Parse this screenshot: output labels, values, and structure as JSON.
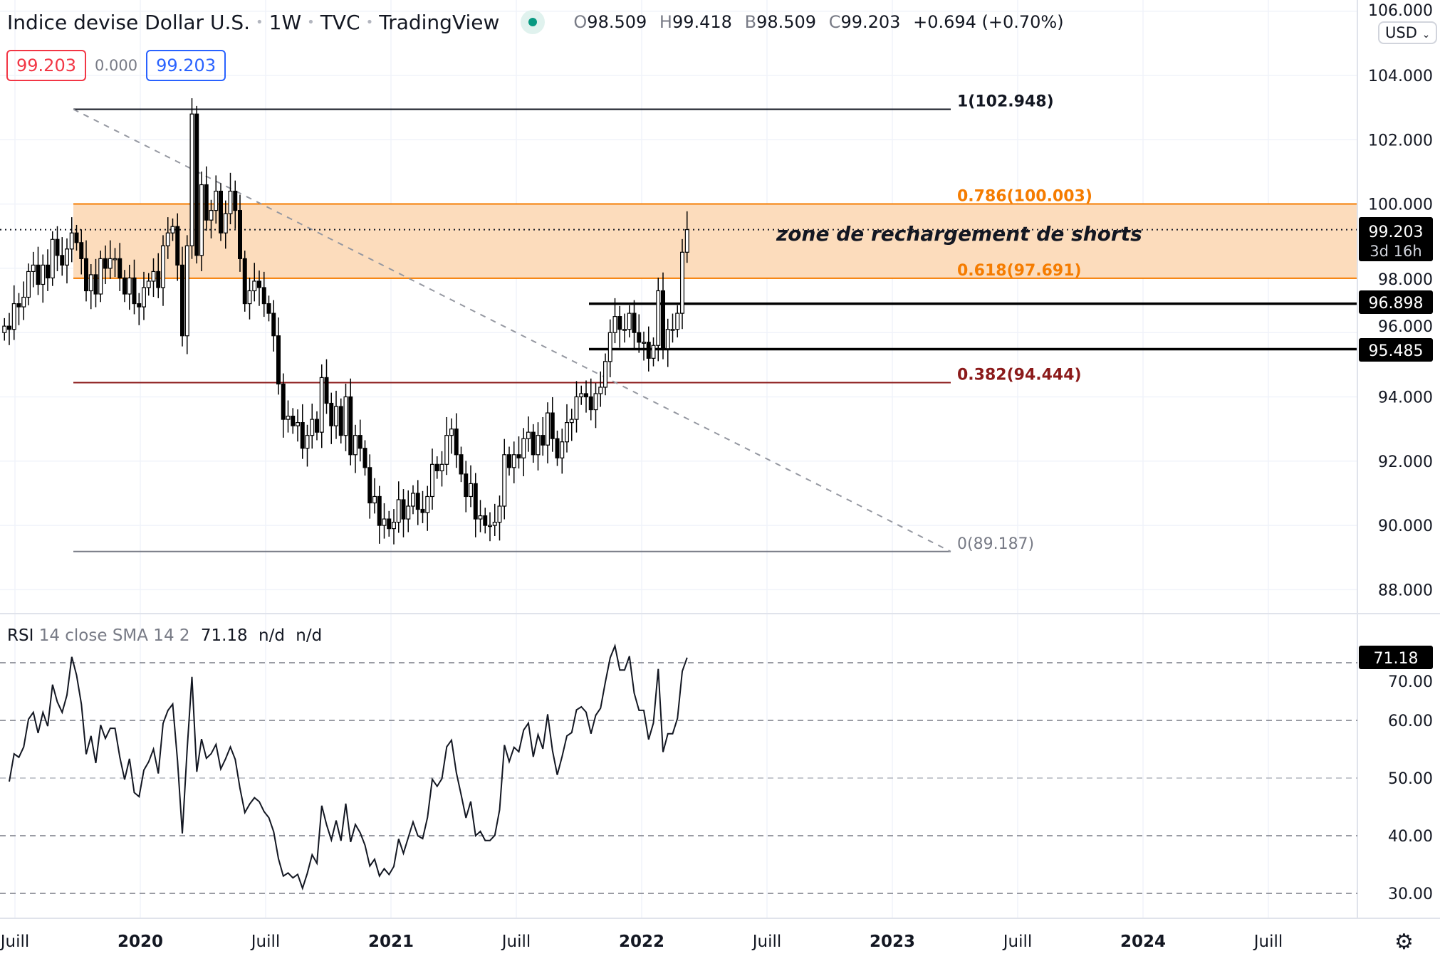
{
  "header": {
    "title": "Indice devise Dollar U.S.",
    "interval": "1W",
    "exchange": "TVC",
    "source": "TradingView",
    "ohlc": {
      "o_label": "O",
      "o": "98.509",
      "h_label": "H",
      "h": "99.418",
      "l_label": "B",
      "l": "98.509",
      "c_label": "C",
      "c": "99.203",
      "change": "+0.694 (+0.70%)"
    },
    "bid": "99.203",
    "spread": "0.000",
    "ask": "99.203"
  },
  "currency_button": "USD",
  "colors": {
    "fib_top": "#131722",
    "fib_786": "#f57c00",
    "fib_618": "#f57c00",
    "fib_382": "#8b1a1a",
    "fib_0": "#787b86",
    "zone": "#fcdcbc",
    "rsi": "#131722"
  },
  "annotation": "zone de rechargement de shorts",
  "price_labels": {
    "last": "99.203",
    "countdown": "3d 16h",
    "line1": "96.898",
    "line2": "95.485"
  },
  "rsi": {
    "title": "RSI",
    "params": "14 close SMA 14 2",
    "value": "71.18",
    "nd1": "n/d",
    "nd2": "n/d"
  },
  "chart_data": {
    "type": "candlestick",
    "title": "Indice devise Dollar U.S. · 1W · TVC",
    "first_week": "2019-06-17",
    "closes": [
      96.2,
      96.1,
      96.9,
      96.8,
      97.1,
      97.9,
      98.1,
      97.5,
      98.1,
      97.7,
      98.9,
      98.4,
      98.1,
      98.6,
      99.1,
      98.8,
      98.3,
      97.3,
      97.8,
      97.2,
      98.3,
      98.0,
      98.3,
      98.3,
      97.7,
      97.2,
      97.7,
      96.9,
      96.8,
      97.4,
      97.6,
      97.9,
      97.4,
      98.7,
      99.1,
      99.3,
      98.1,
      95.9,
      98.7,
      102.8,
      98.4,
      100.6,
      99.5,
      99.8,
      100.4,
      99.1,
      99.7,
      100.4,
      99.8,
      98.3,
      96.9,
      97.3,
      97.6,
      97.4,
      96.9,
      96.6,
      95.9,
      94.4,
      93.3,
      93.4,
      93.1,
      93.2,
      92.4,
      92.8,
      93.3,
      92.9,
      94.6,
      93.8,
      93.1,
      93.7,
      92.8,
      94.0,
      92.2,
      92.8,
      92.4,
      91.8,
      90.7,
      90.9,
      90.0,
      90.2,
      89.9,
      90.1,
      90.8,
      90.2,
      90.6,
      91.0,
      90.5,
      90.4,
      90.9,
      91.9,
      91.7,
      91.9,
      92.8,
      93.0,
      92.2,
      91.6,
      90.9,
      91.3,
      90.2,
      90.3,
      90.0,
      90.0,
      90.1,
      90.6,
      92.2,
      91.8,
      92.2,
      92.1,
      92.7,
      92.9,
      92.2,
      92.8,
      92.5,
      93.5,
      92.7,
      92.1,
      92.6,
      93.2,
      93.3,
      94.0,
      94.1,
      94.0,
      93.6,
      94.1,
      94.3,
      95.1,
      96.0,
      96.5,
      96.1,
      96.1,
      96.6,
      96.0,
      95.7,
      95.7,
      95.2,
      95.6,
      97.3,
      95.5,
      96.1,
      96.1,
      96.6,
      98.5,
      99.203
    ],
    "y_ticks": [
      "106.000",
      "104.000",
      "102.000",
      "100.000",
      "98.000",
      "96.000",
      "94.000",
      "92.000",
      "90.000",
      "88.000"
    ],
    "y_tick_values": [
      106,
      104,
      102,
      100,
      98,
      96,
      94,
      92,
      90,
      88
    ],
    "x_ticks": [
      "Juill",
      "2020",
      "Juill",
      "2021",
      "Juill",
      "2022",
      "Juill",
      "2023",
      "Juill",
      "2024",
      "Juill"
    ],
    "x_tick_years": [
      2019.5,
      2020,
      2020.5,
      2021,
      2021.5,
      2022,
      2022.5,
      2023,
      2023.5,
      2024,
      2024.5
    ],
    "fib_levels": [
      {
        "ratio": "1",
        "value": 102.948,
        "label": "1(102.948)"
      },
      {
        "ratio": "0.786",
        "value": 100.003,
        "label": "0.786(100.003)"
      },
      {
        "ratio": "0.618",
        "value": 97.691,
        "label": "0.618(97.691)"
      },
      {
        "ratio": "0.382",
        "value": 94.444,
        "label": "0.382(94.444)"
      },
      {
        "ratio": "0",
        "value": 89.187,
        "label": "0(89.187)"
      }
    ],
    "horizontal_lines": [
      96.898,
      95.485
    ],
    "rsi_ticks": [
      "70.00",
      "60.00",
      "50.00",
      "40.00",
      "30.00"
    ],
    "rsi_tick_values": [
      70,
      60,
      50,
      40,
      30
    ],
    "rsi_period": 14
  }
}
